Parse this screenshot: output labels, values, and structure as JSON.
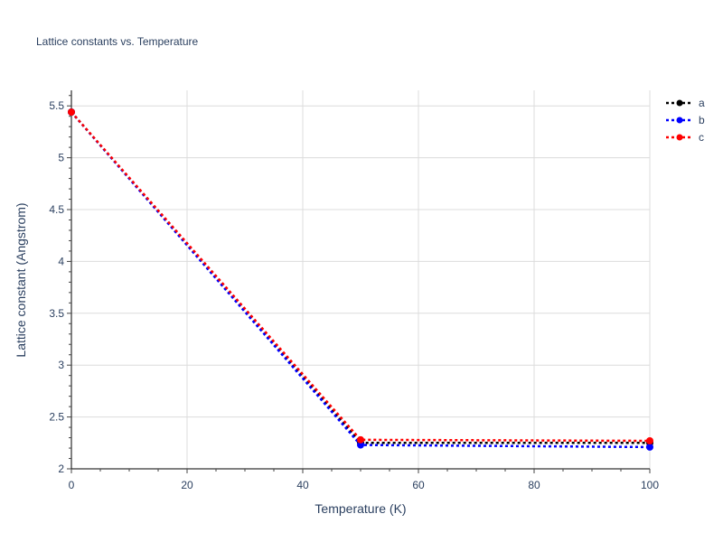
{
  "chart_data": {
    "type": "line",
    "title": "Lattice constants vs. Temperature",
    "xlabel": "Temperature (K)",
    "ylabel": "Lattice constant (Angstrom)",
    "xlim": [
      0,
      100
    ],
    "ylim": [
      2,
      5.65
    ],
    "xticks": [
      0,
      20,
      40,
      60,
      80,
      100
    ],
    "yticks": [
      2,
      2.5,
      3,
      3.5,
      4,
      4.5,
      5,
      5.5
    ],
    "ytick_labels": [
      "2",
      "2.5",
      "3",
      "3.5",
      "4",
      "4.5",
      "5",
      "5.5"
    ],
    "grid": true,
    "legend_position": "top-right",
    "line_style": "dotted",
    "x": [
      0,
      50,
      100
    ],
    "series": [
      {
        "name": "a",
        "color": "#000000",
        "values": [
          5.44,
          2.25,
          2.25
        ]
      },
      {
        "name": "b",
        "color": "#0000ff",
        "values": [
          5.44,
          2.23,
          2.21
        ]
      },
      {
        "name": "c",
        "color": "#ff0000",
        "values": [
          5.44,
          2.28,
          2.27
        ]
      }
    ]
  }
}
